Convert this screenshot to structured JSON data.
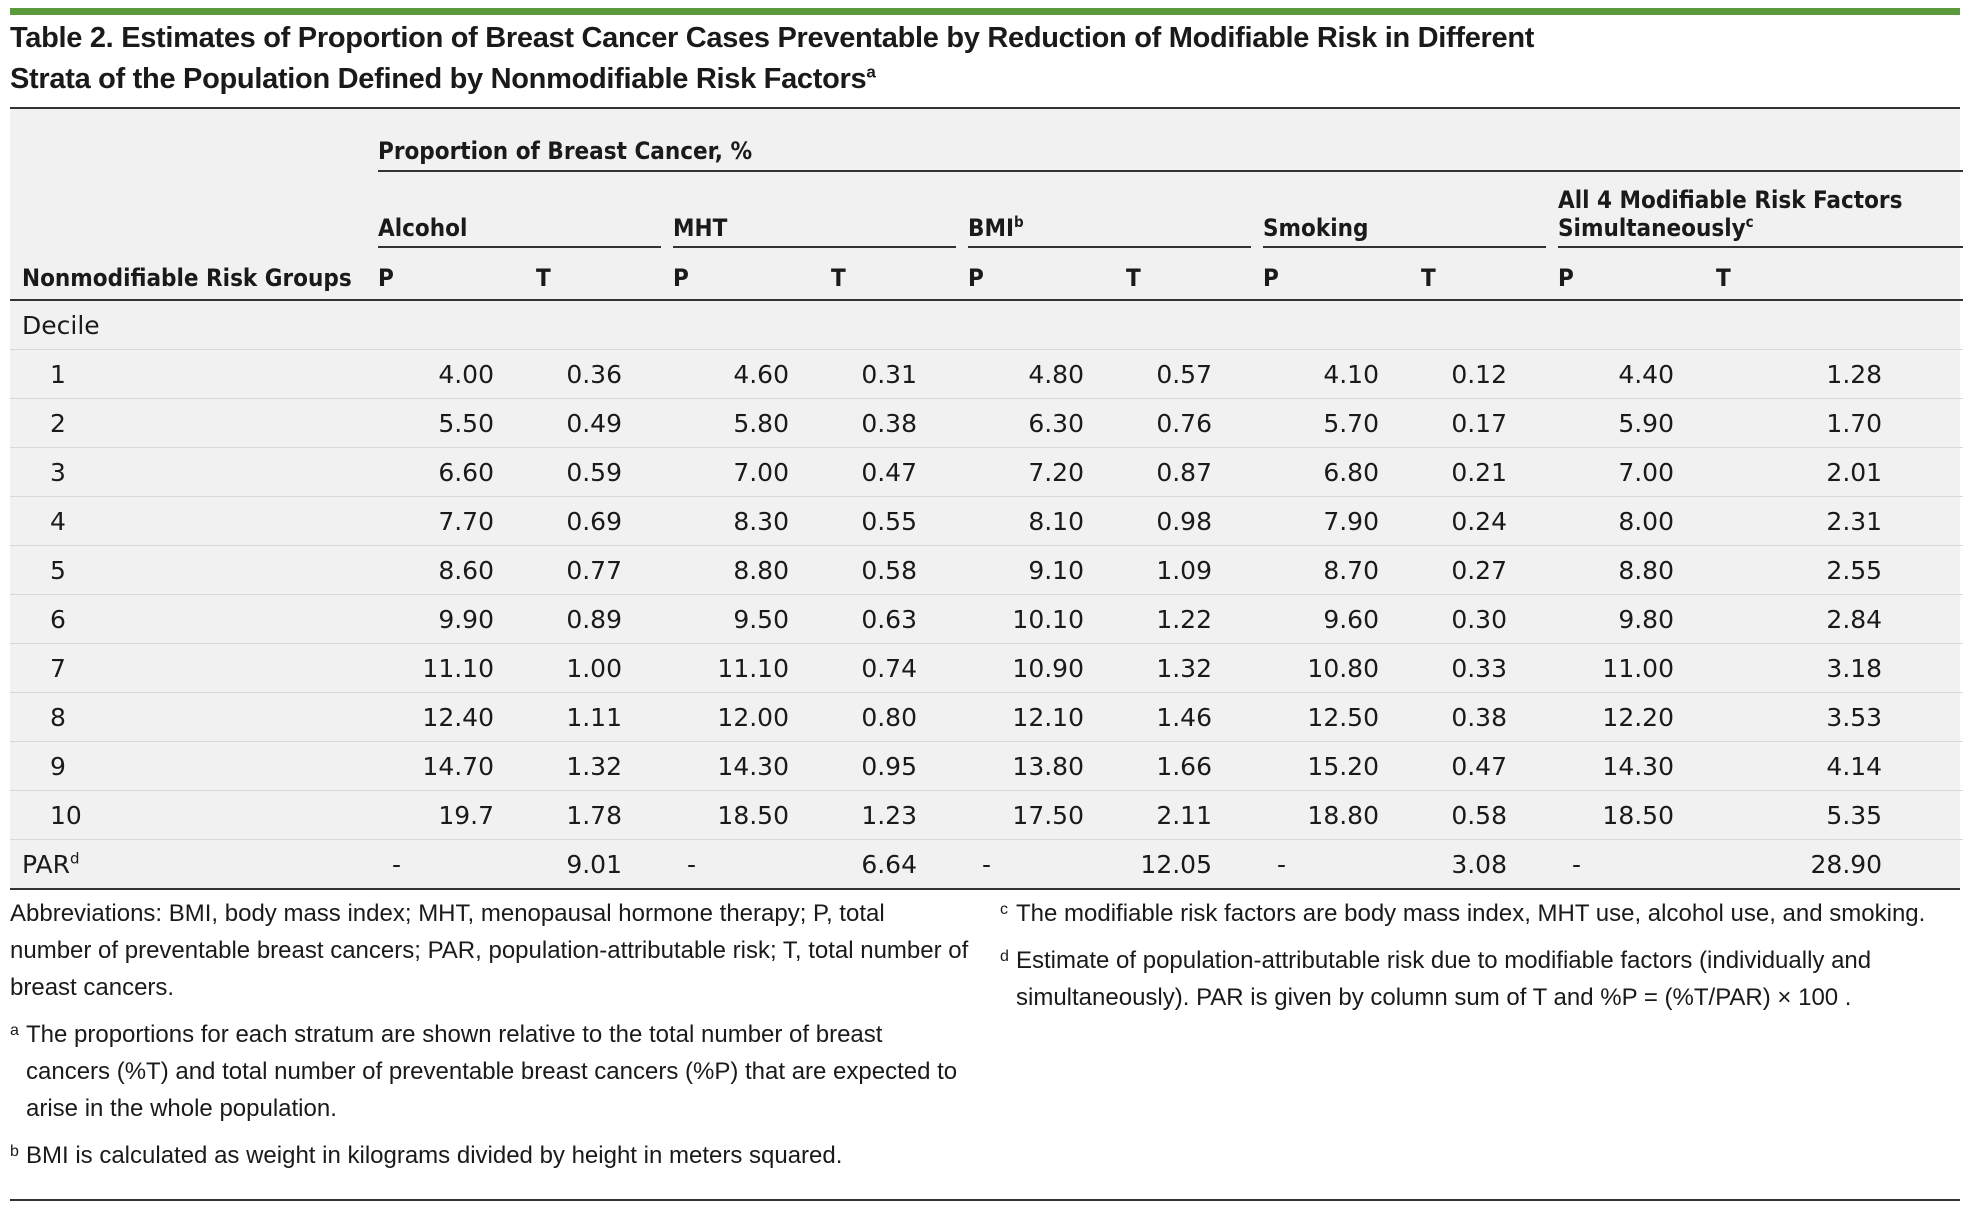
{
  "title": {
    "main": "Table 2. Estimates of Proportion of Breast Cancer Cases Preventable by Reduction of Modifiable Risk in Different Strata of the Population Defined by Nonmodifiable Risk Factors",
    "sup": "a"
  },
  "table": {
    "span_header": "Proportion of Breast Cancer, %",
    "row_header": "Nonmodifiable Risk Groups",
    "groups": [
      {
        "label": "Alcohol",
        "sup": ""
      },
      {
        "label": "MHT",
        "sup": ""
      },
      {
        "label": "BMI",
        "sup": "b"
      },
      {
        "label": "Smoking",
        "sup": ""
      },
      {
        "label": "All 4 Modifiable Risk Factors Simultaneously",
        "sup": "c"
      }
    ],
    "sub_p": "P",
    "sub_t": "T",
    "section_label": "Decile",
    "rows": [
      {
        "label": "1",
        "values": [
          "4.00",
          "0.36",
          "4.60",
          "0.31",
          "4.80",
          "0.57",
          "4.10",
          "0.12",
          "4.40",
          "1.28"
        ]
      },
      {
        "label": "2",
        "values": [
          "5.50",
          "0.49",
          "5.80",
          "0.38",
          "6.30",
          "0.76",
          "5.70",
          "0.17",
          "5.90",
          "1.70"
        ]
      },
      {
        "label": "3",
        "values": [
          "6.60",
          "0.59",
          "7.00",
          "0.47",
          "7.20",
          "0.87",
          "6.80",
          "0.21",
          "7.00",
          "2.01"
        ]
      },
      {
        "label": "4",
        "values": [
          "7.70",
          "0.69",
          "8.30",
          "0.55",
          "8.10",
          "0.98",
          "7.90",
          "0.24",
          "8.00",
          "2.31"
        ]
      },
      {
        "label": "5",
        "values": [
          "8.60",
          "0.77",
          "8.80",
          "0.58",
          "9.10",
          "1.09",
          "8.70",
          "0.27",
          "8.80",
          "2.55"
        ]
      },
      {
        "label": "6",
        "values": [
          "9.90",
          "0.89",
          "9.50",
          "0.63",
          "10.10",
          "1.22",
          "9.60",
          "0.30",
          "9.80",
          "2.84"
        ]
      },
      {
        "label": "7",
        "values": [
          "11.10",
          "1.00",
          "11.10",
          "0.74",
          "10.90",
          "1.32",
          "10.80",
          "0.33",
          "11.00",
          "3.18"
        ]
      },
      {
        "label": "8",
        "values": [
          "12.40",
          "1.11",
          "12.00",
          "0.80",
          "12.10",
          "1.46",
          "12.50",
          "0.38",
          "12.20",
          "3.53"
        ]
      },
      {
        "label": "9",
        "values": [
          "14.70",
          "1.32",
          "14.30",
          "0.95",
          "13.80",
          "1.66",
          "15.20",
          "0.47",
          "14.30",
          "4.14"
        ]
      },
      {
        "label": "10",
        "values": [
          "19.7",
          "1.78",
          "18.50",
          "1.23",
          "17.50",
          "2.11",
          "18.80",
          "0.58",
          "18.50",
          "5.35"
        ]
      }
    ],
    "par_row": {
      "label": "PAR",
      "sup": "d",
      "values": [
        "-",
        "9.01",
        "-",
        "6.64",
        "-",
        "12.05",
        "-",
        "3.08",
        "-",
        "28.90"
      ]
    }
  },
  "notes": {
    "abbreviations": "Abbreviations: BMI, body mass index; MHT, menopausal hormone therapy; P, total number of preventable breast cancers; PAR, population-attributable risk; T, total number of breast cancers.",
    "a": {
      "mark": "a",
      "text": "The proportions for each stratum are shown relative to the total number of breast cancers (%T) and total number of preventable breast cancers (%P) that are expected to arise in the whole population."
    },
    "b": {
      "mark": "b",
      "text": "BMI is calculated as weight in kilograms divided by height in meters squared."
    },
    "c": {
      "mark": "c",
      "text": "The modifiable risk factors are body mass index, MHT use, alcohol use, and smoking."
    },
    "d": {
      "mark": "d",
      "text": "Estimate of population-attributable risk due to modifiable factors (individually and simultaneously). PAR is given by column sum of T and %P = (%T/PAR) × 100 ."
    }
  },
  "colors": {
    "accent_bar": "#5a9a3c",
    "table_bg": "#f1f1f1"
  }
}
